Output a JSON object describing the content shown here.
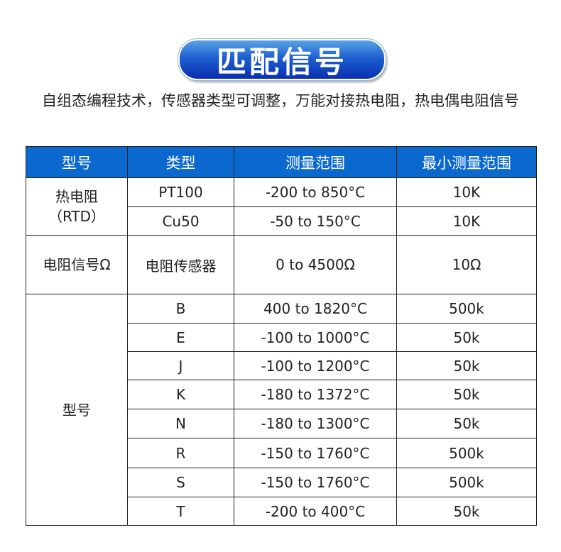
{
  "title": "匹配信号",
  "description": "自组态编程技术，传感器类型可调整，万能对接热电阻，热电偶电阻信号",
  "colors": {
    "header_bg": "#0b68cf",
    "badge": "#1d5fd0"
  },
  "table": {
    "headers": [
      "型号",
      "类型",
      "测量范围",
      "最小测量范围"
    ],
    "groups": [
      {
        "label": "热电阻\n（RTD）",
        "rows": [
          [
            "PT100",
            "-200 to 850°C",
            "10K"
          ],
          [
            "Cu50",
            "-50 to 150°C",
            "10K"
          ]
        ]
      },
      {
        "label": "电阻信号Ω",
        "rows": [
          [
            "电阻传感器",
            "0 to 4500Ω",
            "10Ω"
          ]
        ]
      },
      {
        "label": "型号",
        "rows": [
          [
            "B",
            "400 to 1820°C",
            "500k"
          ],
          [
            "E",
            "-100 to 1000°C",
            "50k"
          ],
          [
            "J",
            "-100 to 1200°C",
            "50k"
          ],
          [
            "K",
            "-180 to 1372°C",
            "50k"
          ],
          [
            "N",
            "-180 to 1300°C",
            "50k"
          ],
          [
            "R",
            "-150 to 1760°C",
            "500k"
          ],
          [
            "S",
            "-150 to 1760°C",
            "500k"
          ],
          [
            "T",
            "-200 to 400°C",
            "50k"
          ]
        ]
      }
    ]
  }
}
